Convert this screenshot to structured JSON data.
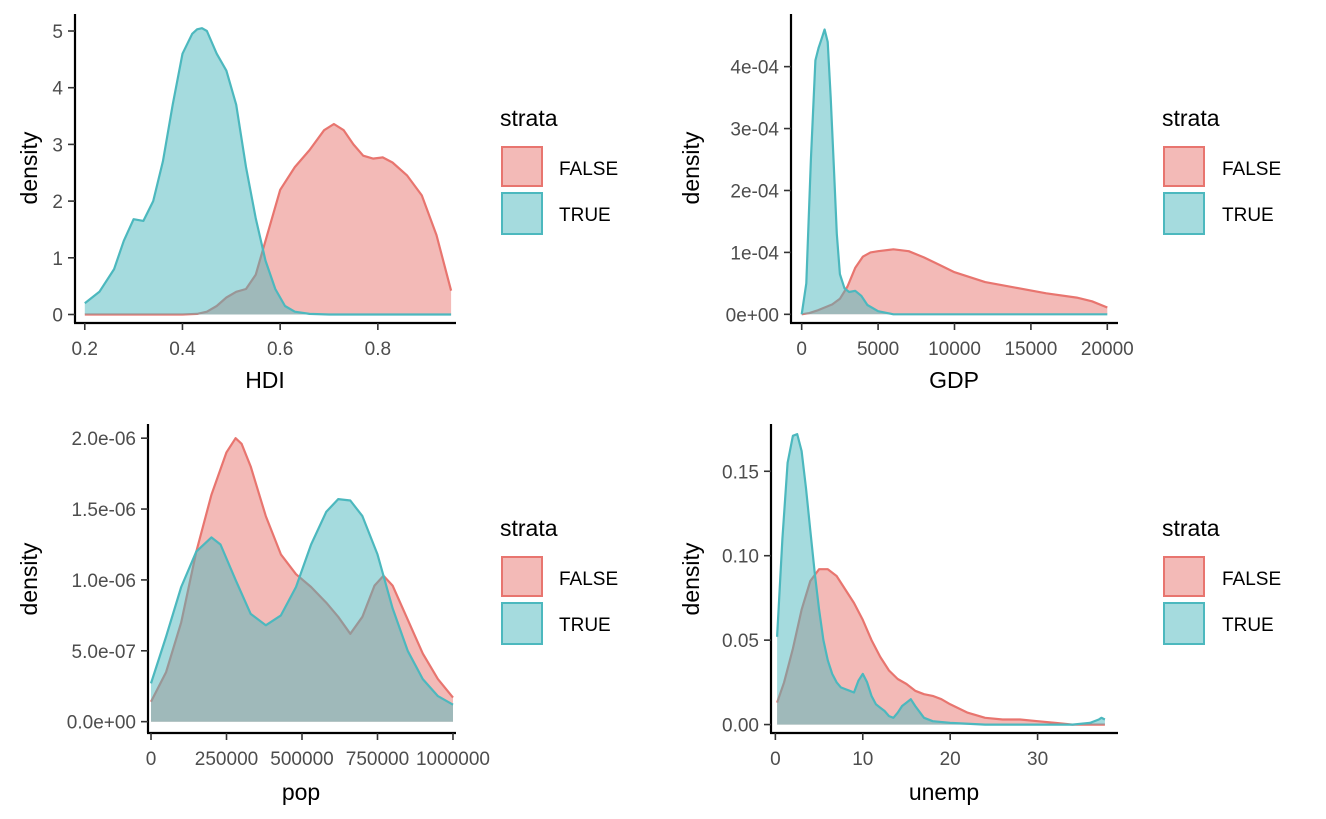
{
  "colors": {
    "FALSE": "#E8756F",
    "TRUE": "#4CB8BE",
    "fill_opacity": 0.5,
    "axis": "#000000",
    "tick_label": "#4d4d4d"
  },
  "legend": {
    "title": "strata",
    "entries": [
      "FALSE",
      "TRUE"
    ]
  },
  "chart_data": [
    {
      "type": "area",
      "chart_kind": "density",
      "xlabel": "HDI",
      "ylabel": "density",
      "xlim": [
        0.18,
        0.96
      ],
      "ylim": [
        -0.15,
        5.3
      ],
      "x_ticks": [
        0.2,
        0.4,
        0.6,
        0.8
      ],
      "x_tick_labels": [
        "0.2",
        "0.4",
        "0.6",
        "0.8"
      ],
      "y_ticks": [
        0,
        1,
        2,
        3,
        4,
        5
      ],
      "y_tick_labels": [
        "0",
        "1",
        "2",
        "3",
        "4",
        "5"
      ],
      "grid": false,
      "series": [
        {
          "name": "FALSE",
          "x": [
            0.2,
            0.3,
            0.4,
            0.43,
            0.45,
            0.47,
            0.49,
            0.51,
            0.53,
            0.55,
            0.57,
            0.6,
            0.63,
            0.66,
            0.69,
            0.71,
            0.73,
            0.75,
            0.77,
            0.79,
            0.81,
            0.83,
            0.86,
            0.89,
            0.92,
            0.95
          ],
          "y": [
            0.0,
            0.0,
            0.0,
            0.01,
            0.05,
            0.15,
            0.3,
            0.4,
            0.45,
            0.7,
            1.3,
            2.2,
            2.6,
            2.9,
            3.25,
            3.36,
            3.25,
            3.0,
            2.8,
            2.75,
            2.77,
            2.68,
            2.45,
            2.1,
            1.4,
            0.42
          ]
        },
        {
          "name": "TRUE",
          "x": [
            0.2,
            0.23,
            0.26,
            0.28,
            0.3,
            0.32,
            0.34,
            0.36,
            0.38,
            0.4,
            0.42,
            0.43,
            0.44,
            0.45,
            0.47,
            0.49,
            0.51,
            0.53,
            0.55,
            0.57,
            0.59,
            0.61,
            0.63,
            0.66,
            0.7,
            0.8,
            0.95
          ],
          "y": [
            0.2,
            0.4,
            0.8,
            1.3,
            1.68,
            1.65,
            2.0,
            2.7,
            3.7,
            4.6,
            4.95,
            5.03,
            5.05,
            5.0,
            4.6,
            4.3,
            3.7,
            2.6,
            1.7,
            0.95,
            0.45,
            0.15,
            0.05,
            0.01,
            0.0,
            0.0,
            0.0
          ]
        }
      ]
    },
    {
      "type": "area",
      "chart_kind": "density",
      "xlabel": "GDP",
      "ylabel": "density",
      "xlim": [
        -700,
        20700
      ],
      "ylim": [
        -1.4e-05,
        0.000485
      ],
      "x_ticks": [
        0,
        5000,
        10000,
        15000,
        20000
      ],
      "x_tick_labels": [
        "0",
        "5000",
        "10000",
        "15000",
        "20000"
      ],
      "y_ticks": [
        0,
        0.0001,
        0.0002,
        0.0003,
        0.0004
      ],
      "y_tick_labels": [
        "0e+00",
        "1e-04",
        "2e-04",
        "3e-04",
        "4e-04"
      ],
      "grid": false,
      "series": [
        {
          "name": "FALSE",
          "x": [
            0,
            500,
            1000,
            2000,
            2500,
            3000,
            3500,
            4000,
            4500,
            5000,
            6000,
            7000,
            8000,
            9000,
            10000,
            12000,
            14000,
            16000,
            18000,
            19000,
            20000
          ],
          "y": [
            0.0,
            2e-06,
            6e-06,
            1.6e-05,
            2.5e-05,
            4.5e-05,
            7.5e-05,
            9.3e-05,
            0.0001,
            0.000102,
            0.000105,
            0.000102,
            9.2e-05,
            8e-05,
            6.8e-05,
            5.2e-05,
            4.3e-05,
            3.4e-05,
            2.7e-05,
            2.1e-05,
            1.1e-05
          ]
        },
        {
          "name": "TRUE",
          "x": [
            0,
            300,
            600,
            900,
            1100,
            1300,
            1500,
            1700,
            1900,
            2100,
            2300,
            2500,
            2800,
            3100,
            3500,
            3900,
            4300,
            5000,
            6000,
            10000,
            20000
          ],
          "y": [
            0.0,
            5e-05,
            0.00025,
            0.00041,
            0.00043,
            0.000445,
            0.00046,
            0.00044,
            0.00035,
            0.00024,
            0.00013,
            6.5e-05,
            4.2e-05,
            3.6e-05,
            3.8e-05,
            3e-05,
            1.5e-05,
            5e-06,
            0.0,
            0.0,
            0.0
          ]
        }
      ]
    },
    {
      "type": "area",
      "chart_kind": "density",
      "xlabel": "pop",
      "ylabel": "density",
      "xlim": [
        -10000,
        1010000
      ],
      "ylim": [
        -8e-08,
        2.1e-06
      ],
      "x_ticks": [
        0,
        250000,
        500000,
        750000,
        1000000
      ],
      "x_tick_labels": [
        "0",
        "250000",
        "500000",
        "750000",
        "1000000"
      ],
      "y_ticks": [
        0,
        5e-07,
        1e-06,
        1.5e-06,
        2e-06
      ],
      "y_tick_labels": [
        "0.0e+00",
        "5.0e-07",
        "1.0e-06",
        "1.5e-06",
        "2.0e-06"
      ],
      "grid": false,
      "series": [
        {
          "name": "FALSE",
          "x": [
            0,
            50000,
            100000,
            150000,
            200000,
            250000,
            280000,
            300000,
            330000,
            380000,
            430000,
            480000,
            530000,
            580000,
            620000,
            660000,
            700000,
            740000,
            770000,
            800000,
            850000,
            900000,
            950000,
            1000000
          ],
          "y": [
            1.4e-07,
            3.5e-07,
            7e-07,
            1.2e-06,
            1.6e-06,
            1.9e-06,
            2e-06,
            1.96e-06,
            1.8e-06,
            1.45e-06,
            1.18e-06,
            1.04e-06,
            9.5e-07,
            8.4e-07,
            7.4e-07,
            6.2e-07,
            7.4e-07,
            9.6e-07,
            1.03e-06,
            9.6e-07,
            7.2e-07,
            4.8e-07,
            3e-07,
            1.7e-07
          ]
        },
        {
          "name": "TRUE",
          "x": [
            0,
            50000,
            100000,
            150000,
            200000,
            230000,
            280000,
            330000,
            380000,
            430000,
            480000,
            530000,
            580000,
            620000,
            660000,
            700000,
            750000,
            800000,
            850000,
            900000,
            950000,
            1000000
          ],
          "y": [
            2.7e-07,
            6e-07,
            9.5e-07,
            1.2e-06,
            1.3e-06,
            1.25e-06,
            1e-06,
            7.6e-07,
            6.8e-07,
            7.5e-07,
            9.5e-07,
            1.25e-06,
            1.48e-06,
            1.57e-06,
            1.56e-06,
            1.45e-06,
            1.18e-06,
            8e-07,
            5e-07,
            3e-07,
            1.8e-07,
            1.2e-07
          ]
        }
      ]
    },
    {
      "type": "area",
      "chart_kind": "density",
      "xlabel": "unemp",
      "ylabel": "density",
      "xlim": [
        -0.5,
        39.2
      ],
      "ylim": [
        -0.005,
        0.178
      ],
      "x_ticks": [
        0,
        10,
        20,
        30
      ],
      "x_tick_labels": [
        "0",
        "10",
        "20",
        "30"
      ],
      "y_ticks": [
        0,
        0.05,
        0.1,
        0.15
      ],
      "y_tick_labels": [
        "0.00",
        "0.05",
        "0.10",
        "0.15"
      ],
      "grid": false,
      "series": [
        {
          "name": "FALSE",
          "x": [
            0.2,
            1,
            2,
            3,
            4,
            5,
            6,
            7,
            8,
            9,
            10,
            11,
            12,
            13,
            14,
            15,
            16,
            17,
            18,
            19,
            20,
            22,
            24,
            26,
            28,
            30,
            32,
            34,
            36,
            37.7
          ],
          "y": [
            0.013,
            0.025,
            0.045,
            0.068,
            0.085,
            0.092,
            0.092,
            0.088,
            0.08,
            0.072,
            0.062,
            0.05,
            0.04,
            0.032,
            0.027,
            0.024,
            0.02,
            0.018,
            0.017,
            0.015,
            0.012,
            0.007,
            0.004,
            0.003,
            0.003,
            0.002,
            0.001,
            0.0,
            0.0,
            0.0
          ]
        },
        {
          "name": "TRUE",
          "x": [
            0.2,
            0.8,
            1.4,
            2,
            2.5,
            3,
            3.5,
            4,
            4.5,
            5,
            5.5,
            6,
            6.5,
            7,
            7.5,
            8,
            8.5,
            9,
            9.5,
            10,
            10.5,
            11,
            11.5,
            12,
            12.5,
            13,
            13.5,
            14,
            14.5,
            15,
            15.5,
            16,
            17,
            18,
            20,
            24,
            30,
            34,
            36,
            37,
            37.3,
            37.7
          ],
          "y": [
            0.052,
            0.11,
            0.155,
            0.171,
            0.172,
            0.162,
            0.14,
            0.115,
            0.09,
            0.068,
            0.05,
            0.038,
            0.03,
            0.025,
            0.022,
            0.021,
            0.02,
            0.019,
            0.026,
            0.03,
            0.025,
            0.017,
            0.012,
            0.01,
            0.008,
            0.005,
            0.004,
            0.007,
            0.011,
            0.013,
            0.015,
            0.011,
            0.004,
            0.002,
            0.001,
            0.0,
            0.0,
            0.0,
            0.001,
            0.003,
            0.004,
            0.003
          ]
        }
      ]
    }
  ]
}
